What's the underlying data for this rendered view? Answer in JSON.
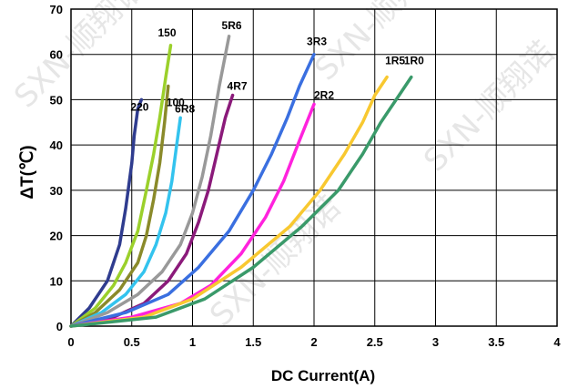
{
  "chart_data": {
    "type": "line",
    "title": "",
    "xlabel": "DC Current(A)",
    "ylabel": "ΔT(℃)",
    "xlim": [
      0,
      4
    ],
    "ylim": [
      0,
      70
    ],
    "x_ticks": [
      "0",
      "0.5",
      "1",
      "1.5",
      "2",
      "2.5",
      "3",
      "3.5",
      "4"
    ],
    "y_ticks": [
      "0",
      "10",
      "20",
      "30",
      "40",
      "50",
      "60",
      "70"
    ],
    "grid": true,
    "legend": "none",
    "series": [
      {
        "name": "220",
        "color": "#2f3c8f",
        "x": [
          0,
          0.15,
          0.3,
          0.4,
          0.45,
          0.5,
          0.52,
          0.55,
          0.58
        ],
        "y": [
          0,
          4,
          10,
          18,
          26,
          36,
          42,
          48,
          50
        ]
      },
      {
        "name": "150",
        "color": "#9bd02b",
        "x": [
          0,
          0.2,
          0.35,
          0.45,
          0.55,
          0.62,
          0.68,
          0.73,
          0.78,
          0.82
        ],
        "y": [
          0,
          4,
          9,
          14,
          21,
          30,
          38,
          46,
          55,
          62
        ]
      },
      {
        "name": "100",
        "color": "#8a8a2a",
        "x": [
          0,
          0.2,
          0.4,
          0.55,
          0.62,
          0.68,
          0.73,
          0.77,
          0.8
        ],
        "y": [
          0,
          3,
          8,
          14,
          20,
          28,
          36,
          45,
          53
        ]
      },
      {
        "name": "6R8",
        "color": "#33c3ee",
        "x": [
          0,
          0.25,
          0.45,
          0.6,
          0.7,
          0.78,
          0.83,
          0.87,
          0.9
        ],
        "y": [
          0,
          3,
          7,
          12,
          18,
          25,
          32,
          40,
          46
        ]
      },
      {
        "name": "5R6",
        "color": "#999999",
        "x": [
          0,
          0.3,
          0.55,
          0.75,
          0.9,
          1.0,
          1.08,
          1.15,
          1.22,
          1.3
        ],
        "y": [
          0,
          3,
          7,
          12,
          18,
          25,
          33,
          42,
          53,
          64
        ]
      },
      {
        "name": "4R7",
        "color": "#8b1a7a",
        "x": [
          0,
          0.35,
          0.6,
          0.8,
          0.95,
          1.05,
          1.13,
          1.2,
          1.27,
          1.33
        ],
        "y": [
          0,
          2,
          5,
          10,
          16,
          23,
          30,
          38,
          46,
          51
        ]
      },
      {
        "name": "3R3",
        "color": "#3a6fe0",
        "x": [
          0,
          0.45,
          0.8,
          1.05,
          1.3,
          1.5,
          1.65,
          1.78,
          1.88,
          2.0
        ],
        "y": [
          0,
          3,
          7,
          13,
          21,
          30,
          38,
          46,
          53,
          60
        ]
      },
      {
        "name": "2R2",
        "color": "#ff22dd",
        "x": [
          0,
          0.5,
          0.9,
          1.15,
          1.4,
          1.6,
          1.75,
          1.88,
          2.0
        ],
        "y": [
          0,
          2,
          5,
          9,
          16,
          24,
          32,
          41,
          49
        ]
      },
      {
        "name": "1R5",
        "color": "#f8c830",
        "x": [
          0,
          0.6,
          1.0,
          1.4,
          1.8,
          2.05,
          2.25,
          2.4,
          2.5,
          2.6
        ],
        "y": [
          0,
          2,
          6,
          13,
          22,
          30,
          38,
          45,
          51,
          55
        ]
      },
      {
        "name": "1R0",
        "color": "#3a9a6a",
        "x": [
          0,
          0.7,
          1.1,
          1.5,
          1.9,
          2.2,
          2.4,
          2.55,
          2.7,
          2.8
        ],
        "y": [
          0,
          2,
          6,
          13,
          22,
          30,
          38,
          45,
          51,
          55
        ]
      }
    ],
    "series_label_positions_note": ""
  },
  "watermark": {
    "text": "SXN-顺翔诺"
  }
}
